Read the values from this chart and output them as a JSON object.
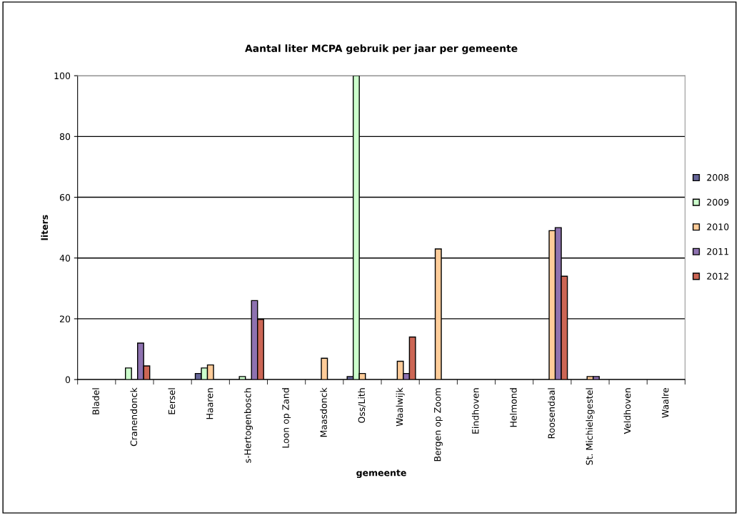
{
  "chart_data": {
    "type": "bar",
    "title": "Aantal liter MCPA gebruik per jaar per gemeente",
    "xlabel": "gemeente",
    "ylabel": "liters",
    "categories": [
      "Bladel",
      "Cranendonck",
      "Eersel",
      "Haaren",
      "s-Hertogenbosch",
      "Loon op Zand",
      "Maasdonck",
      "Oss/Lith",
      "Waalwijk",
      "Bergen op Zoom",
      "Eindhoven",
      "Helmond",
      "Roosendaal",
      "St. Michielsgestel",
      "Veldhoven",
      "Waalre"
    ],
    "series": [
      {
        "name": "2008",
        "color": "#666699",
        "values": [
          null,
          null,
          null,
          2,
          null,
          null,
          null,
          1,
          null,
          null,
          null,
          null,
          null,
          null,
          null,
          null
        ]
      },
      {
        "name": "2009",
        "color": "#ccffcc",
        "values": [
          null,
          3.8,
          null,
          3.8,
          1,
          null,
          null,
          100,
          null,
          null,
          null,
          null,
          null,
          null,
          null,
          null
        ]
      },
      {
        "name": "2010",
        "color": "#ffcc99",
        "values": [
          null,
          null,
          null,
          4.8,
          null,
          null,
          7,
          2,
          6,
          43,
          null,
          null,
          49,
          1,
          null,
          null
        ]
      },
      {
        "name": "2011",
        "color": "#8e72b0",
        "values": [
          null,
          12,
          null,
          null,
          26,
          null,
          null,
          null,
          2,
          null,
          null,
          null,
          50,
          1,
          null,
          null
        ]
      },
      {
        "name": "2012",
        "color": "#cc6655",
        "values": [
          null,
          4.5,
          null,
          null,
          19.8,
          null,
          null,
          null,
          14,
          null,
          null,
          null,
          34,
          null,
          null,
          null
        ]
      }
    ],
    "ylim": [
      0,
      100
    ],
    "yticks": [
      0,
      20,
      40,
      60,
      80,
      100
    ],
    "grid": "y",
    "legend": "right"
  }
}
